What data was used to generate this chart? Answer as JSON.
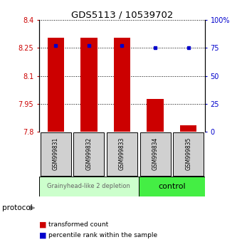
{
  "title": "GDS5113 / 10539702",
  "samples": [
    "GSM999831",
    "GSM999832",
    "GSM999833",
    "GSM999834",
    "GSM999835"
  ],
  "bar_values": [
    8.305,
    8.305,
    8.305,
    7.975,
    7.835
  ],
  "percentile_values": [
    77,
    77,
    77,
    75,
    75
  ],
  "bar_baseline": 7.8,
  "ylim_left": [
    7.8,
    8.4
  ],
  "ylim_right": [
    0,
    100
  ],
  "yticks_left": [
    7.8,
    7.95,
    8.1,
    8.25,
    8.4
  ],
  "ytick_labels_left": [
    "7.8",
    "7.95",
    "8.1",
    "8.25",
    "8.4"
  ],
  "yticks_right": [
    0,
    25,
    50,
    75,
    100
  ],
  "ytick_labels_right": [
    "0",
    "25",
    "50",
    "75",
    "100%"
  ],
  "bar_color": "#cc0000",
  "percentile_color": "#0000cc",
  "left_axis_color": "#cc0000",
  "right_axis_color": "#0000cc",
  "grid_color": "black",
  "group1_indices": [
    0,
    1,
    2
  ],
  "group2_indices": [
    3,
    4
  ],
  "group1_label": "Grainyhead-like 2 depletion",
  "group2_label": "control",
  "group1_color": "#ccffcc",
  "group2_color": "#44ee44",
  "protocol_label": "protocol",
  "legend_bar_label": "transformed count",
  "legend_pct_label": "percentile rank within the sample",
  "title_fontsize": 9.5,
  "tick_fontsize": 7,
  "bar_width": 0.5,
  "sample_label_fontsize": 5.5,
  "group_label_fontsize": 6,
  "legend_fontsize": 6.5
}
